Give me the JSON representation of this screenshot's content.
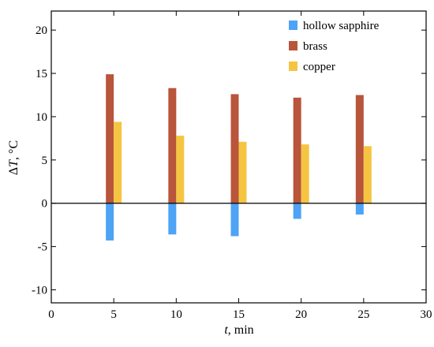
{
  "chart_data": {
    "type": "bar",
    "x": [
      5,
      10,
      15,
      20,
      25
    ],
    "xlabel_var": "t",
    "xlabel_unit": ", min",
    "ylabel_prefix": "Δ",
    "ylabel_var": "T",
    "ylabel_unit": ", °C",
    "xlim": [
      0,
      30
    ],
    "ylim": [
      -11.5,
      22.2
    ],
    "xticks": [
      0,
      5,
      10,
      15,
      20,
      25,
      30
    ],
    "yticks": [
      -10,
      -5,
      0,
      5,
      10,
      15,
      20
    ],
    "series": [
      {
        "name": "hollow sapphire",
        "color": "#4da3f5",
        "values": [
          -4.3,
          -3.6,
          -3.8,
          -1.8,
          -1.3
        ]
      },
      {
        "name": "brass",
        "color": "#b8553a",
        "values": [
          14.9,
          13.3,
          12.6,
          12.2,
          12.5
        ]
      },
      {
        "name": "copper",
        "color": "#f5c542",
        "values": [
          9.4,
          7.8,
          7.1,
          6.8,
          6.6
        ]
      }
    ],
    "zero_line": true,
    "grid": false,
    "legend_position": "top-right"
  }
}
